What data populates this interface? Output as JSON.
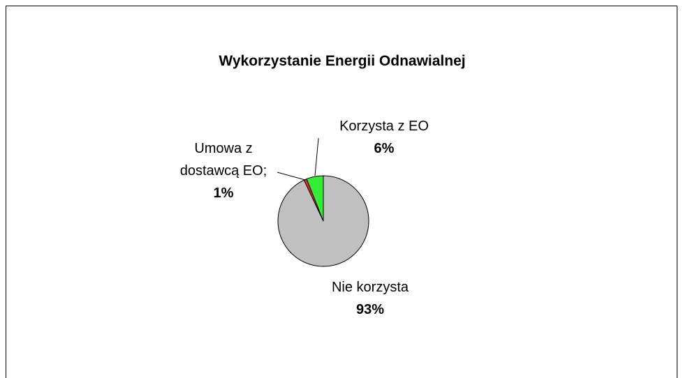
{
  "chart_data": {
    "type": "pie",
    "title": "Wykorzystanie Energii Odnawialnej",
    "categories": [
      "Nie korzysta",
      "Umowa z dostawcą EO;",
      "Korzysta z EO"
    ],
    "values": [
      93,
      1,
      6
    ],
    "value_labels": [
      "93%",
      "1%",
      "6%"
    ],
    "colors": [
      "#c0c0c0",
      "#ff2020",
      "#33ee33"
    ]
  }
}
